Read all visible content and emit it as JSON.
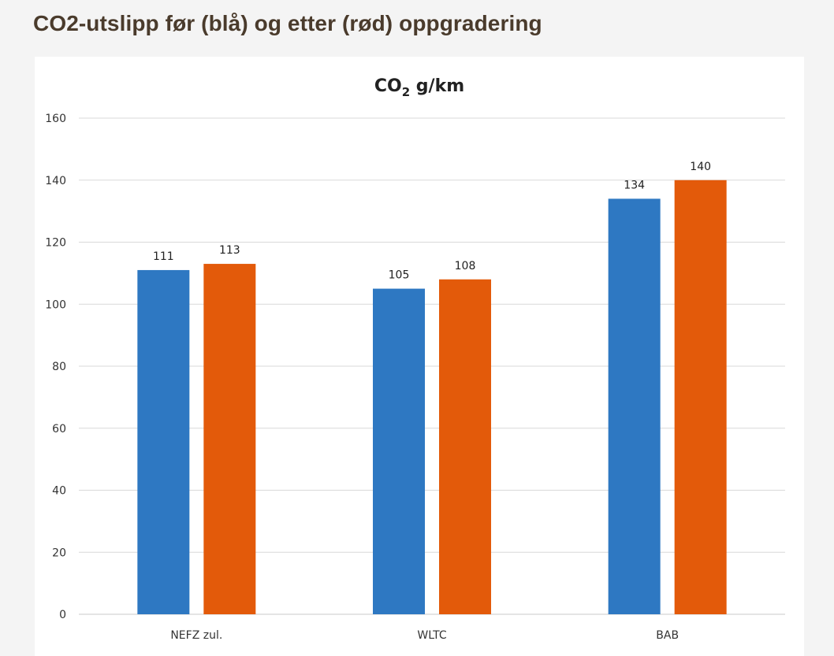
{
  "page": {
    "heading": "CO2-utslipp før (blå) og etter (rød) oppgradering"
  },
  "chart_data": {
    "type": "bar",
    "title": {
      "main": "CO",
      "subscript": "2",
      "suffix": " g/km"
    },
    "xlabel": "",
    "ylabel": "",
    "ylim": [
      0,
      160
    ],
    "yticks": [
      0,
      20,
      40,
      60,
      80,
      100,
      120,
      140,
      160
    ],
    "grid": true,
    "legend": "none",
    "categories": [
      "NEFZ zul.",
      "WLTC",
      "BAB"
    ],
    "series": [
      {
        "color": "#2e78c2",
        "values": [
          111,
          105,
          134
        ]
      },
      {
        "color": "#e35a0a",
        "values": [
          113,
          108,
          140
        ]
      }
    ],
    "data_labels": true
  }
}
